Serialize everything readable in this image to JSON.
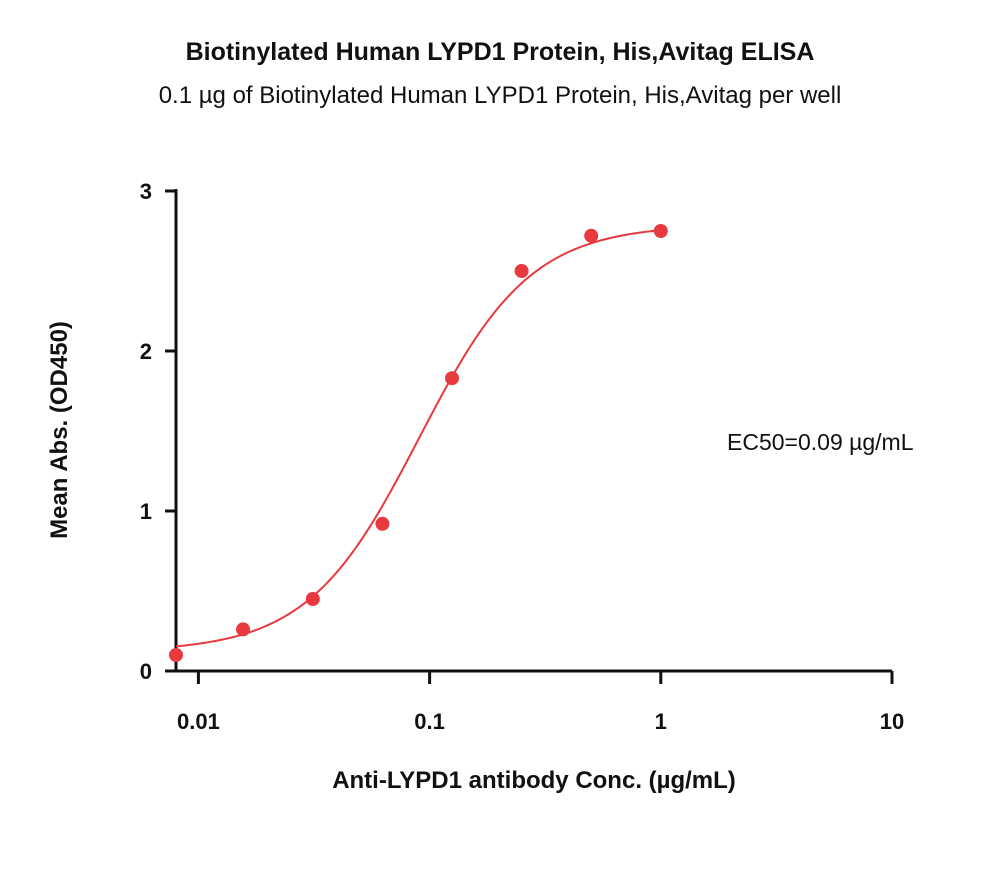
{
  "chart_data": {
    "type": "scatter",
    "title": "Biotinylated Human LYPD1 Protein, His,Avitag ELISA",
    "subtitle": "0.1 µg of Biotinylated Human LYPD1 Protein, His,Avitag per well",
    "xlabel": "Anti-LYPD1 antibody Conc. (µg/mL)",
    "ylabel": "Mean Abs. (OD450)",
    "x_scale": "log",
    "xlim": [
      0.008,
      10
    ],
    "ylim": [
      0,
      3
    ],
    "x_ticks": [
      0.01,
      0.1,
      1,
      10
    ],
    "x_tick_labels": [
      "0.01",
      "0.1",
      "1",
      "10"
    ],
    "y_ticks": [
      0,
      1,
      2,
      3
    ],
    "y_tick_labels": [
      "0",
      "1",
      "2",
      "3"
    ],
    "grid": false,
    "series": [
      {
        "color": "#e8393f",
        "x": [
          0.008,
          0.0156,
          0.03125,
          0.0625,
          0.125,
          0.25,
          0.5,
          1.0
        ],
        "y": [
          0.1,
          0.26,
          0.45,
          0.92,
          1.83,
          2.5,
          2.72,
          2.75
        ],
        "fit": {
          "model": "4PL",
          "bottom": 0.12,
          "top": 2.79,
          "ec50": 0.09,
          "hill": 1.8
        }
      }
    ],
    "annotations": [
      {
        "text": "EC50=0.09 µg/mL"
      }
    ]
  }
}
